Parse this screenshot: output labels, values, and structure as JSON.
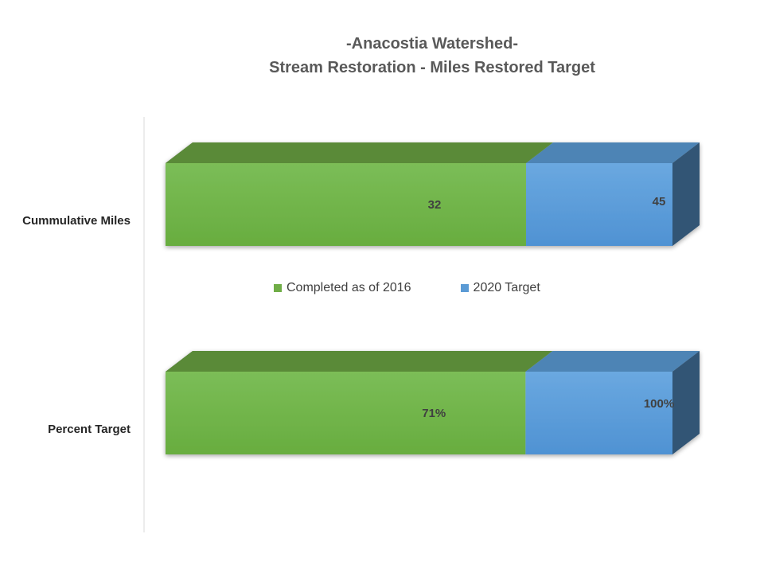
{
  "title": {
    "line1": "-Anacostia Watershed-",
    "line2": "Stream Restoration - Miles Restored Target"
  },
  "colors": {
    "completed": "#70AD47",
    "target": "#5B9BD5"
  },
  "chart_data": {
    "type": "bar",
    "orientation": "horizontal",
    "style": "3d-overlapped",
    "title": "-Anacostia Watershed- Stream Restoration - Miles Restored Target",
    "categories": [
      "Cummulative Miles",
      "Percent Target"
    ],
    "series": [
      {
        "name": "Completed as of 2016",
        "values": [
          32,
          71
        ],
        "labels": [
          "32",
          "71%"
        ],
        "color": "#70AD47"
      },
      {
        "name": "2020 Target",
        "values": [
          45,
          100
        ],
        "labels": [
          "45",
          "100%"
        ],
        "color": "#5B9BD5"
      }
    ],
    "legend": "between-bars",
    "grid": false
  }
}
